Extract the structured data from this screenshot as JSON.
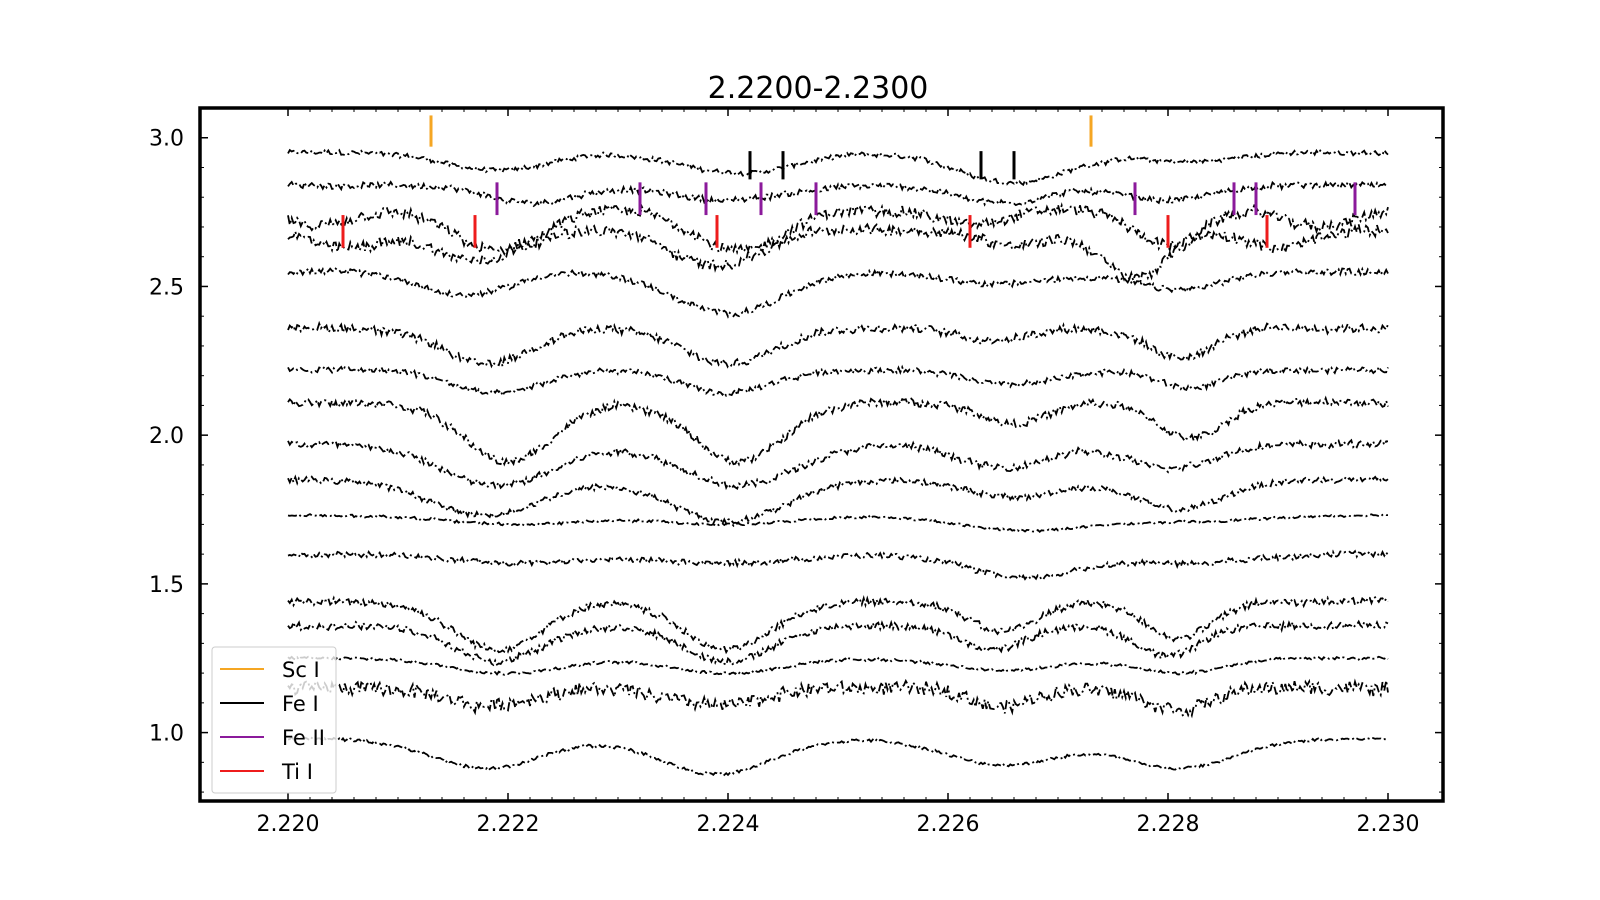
{
  "chart_data": {
    "type": "line",
    "title": "2.2200-2.2300",
    "xlabel": "",
    "ylabel": "",
    "xlim": [
      2.2192,
      2.2305
    ],
    "ylim": [
      0.77,
      3.1
    ],
    "grid": false,
    "x_ticks": [
      2.22,
      2.222,
      2.224,
      2.226,
      2.228,
      2.23
    ],
    "x_tick_labels": [
      "2.220",
      "2.222",
      "2.224",
      "2.226",
      "2.228",
      "2.230"
    ],
    "y_ticks": [
      1.0,
      1.5,
      2.0,
      2.5,
      3.0
    ],
    "y_tick_labels": [
      "1.0",
      "1.5",
      "2.0",
      "2.5",
      "3.0"
    ],
    "x_range_of_spectra": [
      2.22,
      2.23
    ],
    "line_style": "dash-dot",
    "line_color": "#000000",
    "series": [
      {
        "offset": 2.95,
        "noise": 0.008,
        "lines": [
          [
            2.2219,
            0.06,
            0.00045
          ],
          [
            2.2241,
            0.07,
            0.0005
          ],
          [
            2.2266,
            0.1,
            0.0005
          ],
          [
            2.2282,
            0.03,
            0.0004
          ]
        ]
      },
      {
        "offset": 2.84,
        "noise": 0.01,
        "lines": [
          [
            2.2222,
            0.06,
            0.0004
          ],
          [
            2.224,
            0.05,
            0.0005
          ],
          [
            2.2265,
            0.06,
            0.0004
          ],
          [
            2.228,
            0.05,
            0.0004
          ]
        ]
      },
      {
        "offset": 2.76,
        "noise": 0.018,
        "lines": [
          [
            2.2203,
            0.06,
            0.0003
          ],
          [
            2.2219,
            0.14,
            0.0004
          ],
          [
            2.2241,
            0.14,
            0.0004
          ],
          [
            2.2262,
            0.05,
            0.0003
          ],
          [
            2.228,
            0.12,
            0.0003
          ],
          [
            2.2294,
            0.06,
            0.0003
          ]
        ]
      },
      {
        "offset": 2.69,
        "noise": 0.018,
        "lines": [
          [
            2.2205,
            0.06,
            0.0003
          ],
          [
            2.2217,
            0.1,
            0.0004
          ],
          [
            2.2239,
            0.12,
            0.0004
          ],
          [
            2.2266,
            0.05,
            0.0003
          ],
          [
            2.2277,
            0.16,
            0.0003
          ],
          [
            2.229,
            0.06,
            0.0003
          ]
        ]
      },
      {
        "offset": 2.55,
        "noise": 0.01,
        "lines": [
          [
            2.2216,
            0.08,
            0.0004
          ],
          [
            2.224,
            0.14,
            0.0005
          ],
          [
            2.2265,
            0.04,
            0.0005
          ],
          [
            2.2281,
            0.06,
            0.0004
          ]
        ]
      },
      {
        "offset": 2.36,
        "noise": 0.014,
        "lines": [
          [
            2.2218,
            0.12,
            0.0004
          ],
          [
            2.224,
            0.12,
            0.0004
          ],
          [
            2.2264,
            0.04,
            0.0003
          ],
          [
            2.2281,
            0.1,
            0.0003
          ]
        ]
      },
      {
        "offset": 2.22,
        "noise": 0.01,
        "lines": [
          [
            2.2219,
            0.08,
            0.0004
          ],
          [
            2.224,
            0.08,
            0.0004
          ],
          [
            2.2266,
            0.05,
            0.0004
          ],
          [
            2.2282,
            0.06,
            0.0003
          ]
        ]
      },
      {
        "offset": 2.11,
        "noise": 0.013,
        "lines": [
          [
            2.222,
            0.2,
            0.0004
          ],
          [
            2.2241,
            0.2,
            0.0004
          ],
          [
            2.2266,
            0.07,
            0.0003
          ],
          [
            2.2282,
            0.12,
            0.0003
          ]
        ]
      },
      {
        "offset": 1.97,
        "noise": 0.012,
        "lines": [
          [
            2.2219,
            0.14,
            0.0005
          ],
          [
            2.2241,
            0.14,
            0.0005
          ],
          [
            2.2265,
            0.08,
            0.0004
          ],
          [
            2.228,
            0.08,
            0.0004
          ]
        ]
      },
      {
        "offset": 1.85,
        "noise": 0.01,
        "lines": [
          [
            2.2218,
            0.12,
            0.0005
          ],
          [
            2.224,
            0.14,
            0.0005
          ],
          [
            2.2266,
            0.06,
            0.0004
          ],
          [
            2.2281,
            0.1,
            0.0004
          ]
        ]
      },
      {
        "offset": 1.73,
        "noise": 0.004,
        "lines": [
          [
            2.2221,
            0.03,
            0.0006
          ],
          [
            2.224,
            0.03,
            0.0006
          ],
          [
            2.2267,
            0.05,
            0.0006
          ],
          [
            2.2282,
            0.02,
            0.0006
          ]
        ]
      },
      {
        "offset": 1.6,
        "noise": 0.009,
        "lines": [
          [
            2.2221,
            0.03,
            0.0006
          ],
          [
            2.224,
            0.03,
            0.0006
          ],
          [
            2.2267,
            0.08,
            0.0005
          ],
          [
            2.2282,
            0.03,
            0.0005
          ]
        ]
      },
      {
        "offset": 1.44,
        "noise": 0.012,
        "lines": [
          [
            2.2219,
            0.16,
            0.0004
          ],
          [
            2.224,
            0.16,
            0.0004
          ],
          [
            2.2265,
            0.1,
            0.0003
          ],
          [
            2.2281,
            0.12,
            0.0003
          ]
        ]
      },
      {
        "offset": 1.36,
        "noise": 0.012,
        "lines": [
          [
            2.2219,
            0.12,
            0.0004
          ],
          [
            2.224,
            0.12,
            0.0004
          ],
          [
            2.2264,
            0.08,
            0.0003
          ],
          [
            2.228,
            0.1,
            0.0003
          ]
        ]
      },
      {
        "offset": 1.25,
        "noise": 0.005,
        "lines": [
          [
            2.222,
            0.05,
            0.0005
          ],
          [
            2.224,
            0.05,
            0.0005
          ],
          [
            2.2265,
            0.04,
            0.0005
          ],
          [
            2.2281,
            0.05,
            0.0004
          ]
        ]
      },
      {
        "offset": 1.15,
        "noise": 0.022,
        "lines": [
          [
            2.2218,
            0.06,
            0.0004
          ],
          [
            2.2239,
            0.06,
            0.0004
          ],
          [
            2.2265,
            0.06,
            0.0003
          ],
          [
            2.2281,
            0.07,
            0.0003
          ]
        ]
      },
      {
        "offset": 0.98,
        "noise": 0.005,
        "lines": [
          [
            2.2218,
            0.1,
            0.0005
          ],
          [
            2.2239,
            0.12,
            0.0005
          ],
          [
            2.2265,
            0.09,
            0.0005
          ],
          [
            2.2281,
            0.1,
            0.0005
          ]
        ]
      }
    ],
    "line_markers": [
      {
        "species": "Sc I",
        "x": [
          2.2213,
          2.2273
        ],
        "y_top": 3.075,
        "y_bottom": 2.97,
        "color": "#f5a623"
      },
      {
        "species": "Fe I",
        "x": [
          2.2242,
          2.2245,
          2.2263,
          2.2266
        ],
        "y_top": 2.955,
        "y_bottom": 2.86,
        "color": "#000000"
      },
      {
        "species": "Fe II",
        "x": [
          2.2219,
          2.2232,
          2.2238,
          2.2243,
          2.2248,
          2.2277,
          2.2286,
          2.2288,
          2.2297
        ],
        "y_top": 2.85,
        "y_bottom": 2.74,
        "color": "#8b1a9b"
      },
      {
        "species": "Ti I",
        "x": [
          2.2205,
          2.2217,
          2.2239,
          2.2262,
          2.228,
          2.2289
        ],
        "y_top": 2.74,
        "y_bottom": 2.63,
        "color": "#ee1c1c"
      }
    ],
    "legend": {
      "placement": "lower-left",
      "entries": [
        {
          "label": "Sc I",
          "color": "#f5a623"
        },
        {
          "label": "Fe I",
          "color": "#000000"
        },
        {
          "label": "Fe II",
          "color": "#8b1a9b"
        },
        {
          "label": "Ti I",
          "color": "#ee1c1c"
        }
      ]
    }
  }
}
